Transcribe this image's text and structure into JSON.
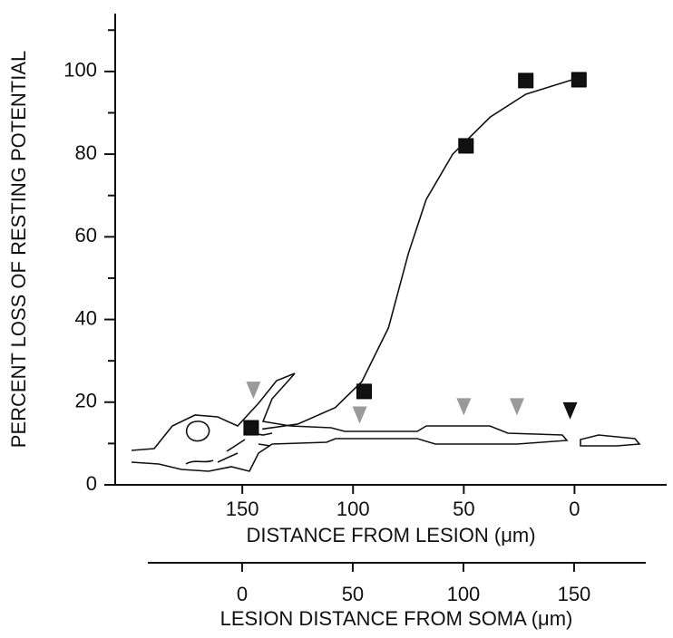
{
  "chart_data": {
    "type": "scatter",
    "ylabel": "PERCENT LOSS OF RESTING POTENTIAL",
    "xlabel": "DISTANCE FROM LESION  (μm)",
    "x2label": "LESION DISTANCE FROM SOMA (μm)",
    "xlim": [
      207.4,
      -41.6
    ],
    "xticks": [
      150,
      100,
      50,
      0
    ],
    "x2lim": [
      -42.6,
      182.4
    ],
    "x2ticks": [
      0,
      50,
      100,
      150
    ],
    "ylim": [
      0,
      114
    ],
    "yticks": [
      0,
      20,
      40,
      60,
      80,
      100
    ],
    "yminorticks": [
      10,
      30,
      50,
      70,
      90,
      110
    ],
    "series": [
      {
        "marker": "square",
        "color": "#111111",
        "x": [
          146,
          95,
          49,
          22,
          -2
        ],
        "values": [
          13.8,
          22.6,
          82,
          97.8,
          98
        ]
      },
      {
        "marker": "triangle",
        "color": "#9a9a9a",
        "x": [
          145,
          97,
          50,
          26
        ],
        "values": [
          23,
          17,
          19,
          19
        ]
      },
      {
        "marker": "triangle",
        "color": "#111111",
        "x": [
          2
        ],
        "values": [
          18
        ]
      },
      {
        "marker": "line",
        "color": "#111111",
        "x": [
          141,
          125,
          108,
          96,
          84,
          75,
          67,
          55,
          38,
          22,
          1
        ],
        "values": [
          13.5,
          14.7,
          18.7,
          25,
          38,
          56,
          69,
          80,
          89,
          94.5,
          98
        ]
      }
    ]
  }
}
